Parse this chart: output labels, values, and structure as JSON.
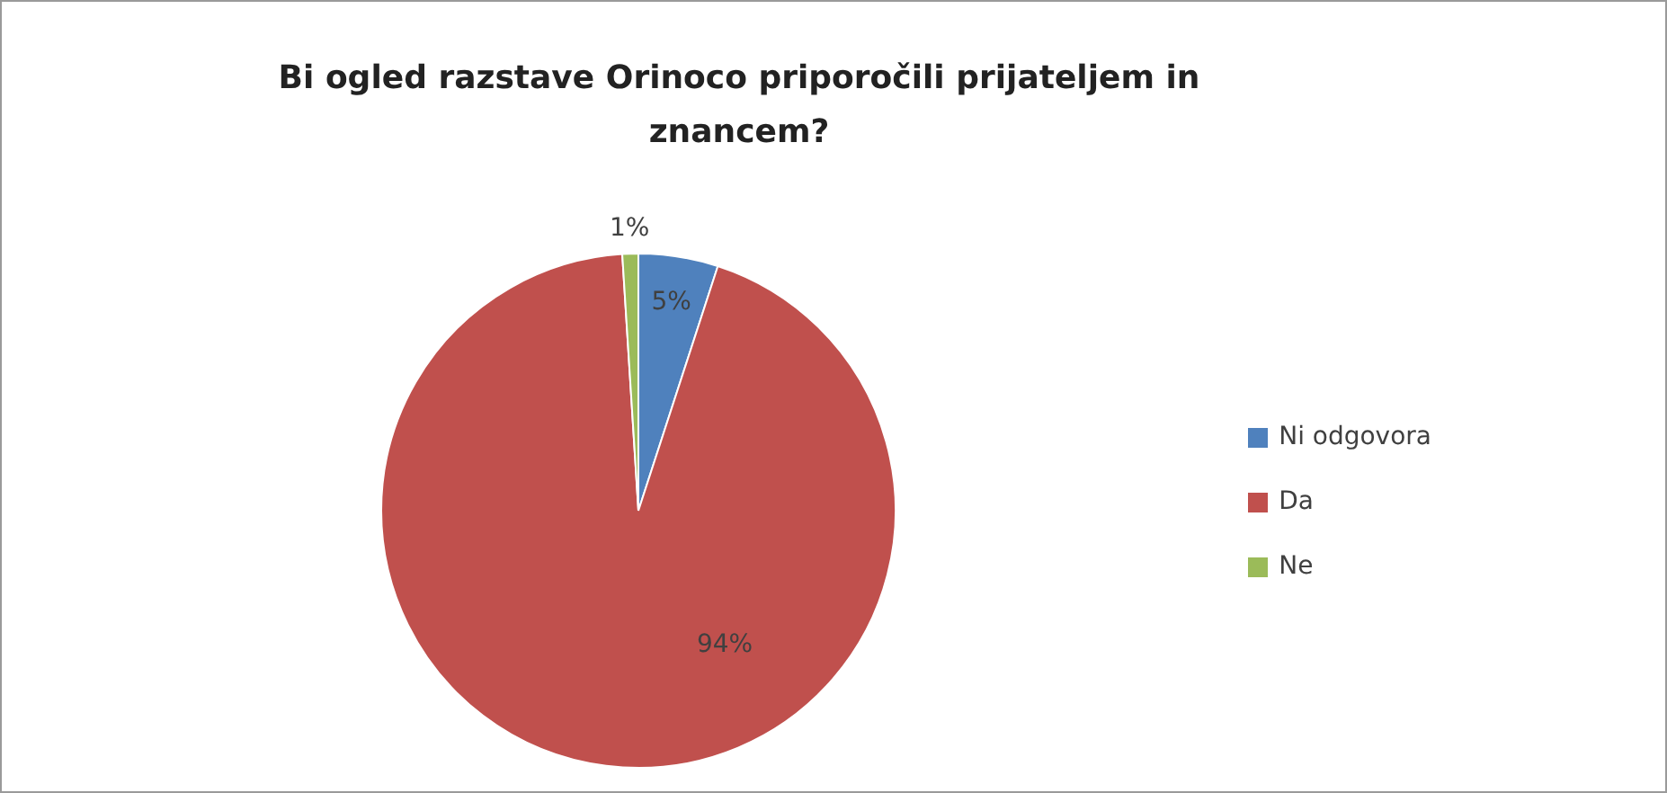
{
  "chart_data": {
    "type": "pie",
    "title": "Bi ogled razstave Orinoco priporočili prijateljem in znancem?",
    "categories": [
      "Ni odgovora",
      "Da",
      "Ne"
    ],
    "values": [
      5,
      94,
      1
    ],
    "colors": [
      "#4f81bd",
      "#c0504d",
      "#9bbb59"
    ],
    "value_labels": [
      "5%",
      "94%",
      "1%"
    ],
    "legend": "right"
  }
}
